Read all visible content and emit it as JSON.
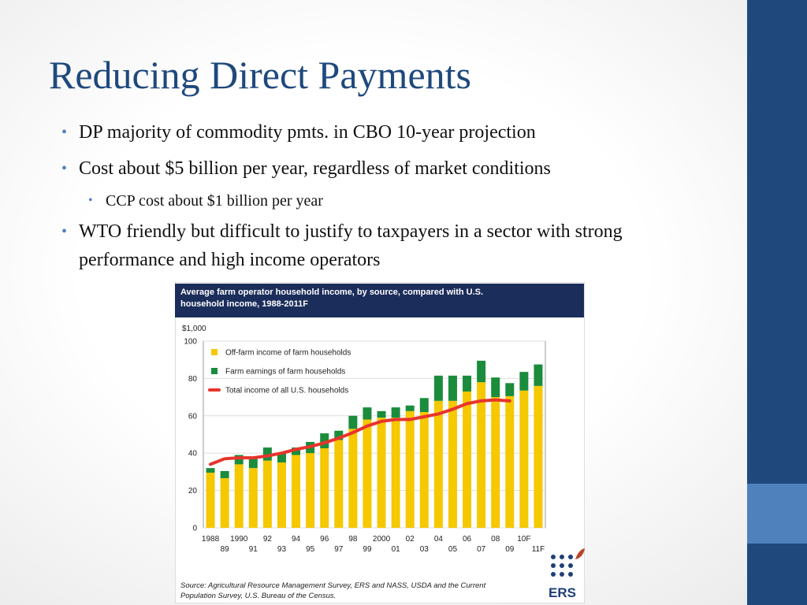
{
  "slide": {
    "title": "Reducing Direct Payments",
    "bullets": [
      {
        "text": "DP majority of commodity pmts. in CBO 10-year projection"
      },
      {
        "text": "Cost about $5 billion per year, regardless of market conditions",
        "sub": [
          "CCP cost about $1 billion per year"
        ]
      },
      {
        "text": "WTO friendly but difficult to justify to taxpayers in a sector with strong performance and high income operators"
      }
    ]
  },
  "chart_data": {
    "type": "bar",
    "stacked": true,
    "title": [
      "Average farm operator household income, by source, compared with U.S.",
      "household income, 1988-2011F"
    ],
    "y_unit": "$1,000",
    "categories": [
      "1988",
      "89",
      "1990",
      "91",
      "92",
      "93",
      "94",
      "95",
      "96",
      "97",
      "98",
      "99",
      "2000",
      "01",
      "02",
      "03",
      "04",
      "05",
      "06",
      "07",
      "08",
      "09",
      "10F",
      "11F"
    ],
    "series": [
      {
        "name": "Off-farm income of farm households",
        "color": "#f5c800",
        "values": [
          29.5,
          26.6,
          34,
          32,
          36,
          35,
          39,
          40,
          42.6,
          47,
          53,
          58,
          59,
          59,
          62.5,
          62,
          68,
          68,
          73,
          78,
          70,
          70.5,
          73.5,
          76
        ]
      },
      {
        "name": "Farm earnings of farm households",
        "color": "#1a8c3c",
        "values": [
          2.5,
          3.8,
          5,
          5,
          7,
          5,
          4,
          6,
          8,
          5,
          7,
          6.5,
          3.5,
          5.5,
          3,
          7.5,
          13.5,
          13.5,
          8.5,
          11.5,
          10.5,
          7,
          10,
          11.5
        ]
      },
      {
        "name": "Total income of all U.S. households",
        "color": "#e8342c",
        "type": "line",
        "values": [
          34,
          37,
          37.5,
          37.5,
          38.5,
          40,
          42,
          43.5,
          45.5,
          48,
          51,
          54.5,
          57,
          58,
          58,
          59.5,
          61,
          63.5,
          66.5,
          68,
          68.5,
          68,
          null,
          null
        ]
      }
    ],
    "ylim": [
      0,
      100
    ],
    "yticks": [
      0,
      20,
      40,
      60,
      80,
      100
    ],
    "grid": true,
    "legend": "top-left",
    "source": [
      "Source:   Agricultural Resource Management Survey, ERS and NASS, USDA and the Current",
      "Population Survey, U.S. Bureau of the Census."
    ],
    "logo": "ERS"
  }
}
